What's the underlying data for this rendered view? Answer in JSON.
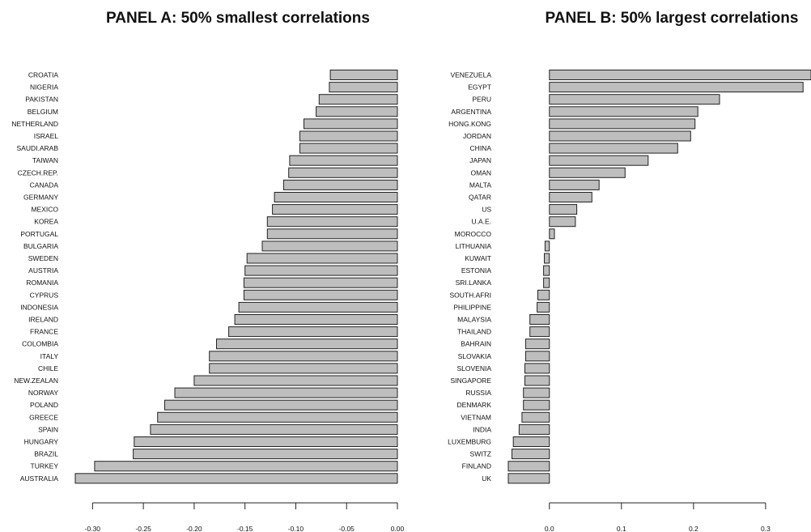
{
  "colors": {
    "bar_fill": "#bebebe",
    "bar_stroke": "#222222",
    "text": "#111111",
    "background": "#ffffff"
  },
  "chart_data": [
    {
      "type": "bar",
      "orientation": "horizontal",
      "title": "PANEL A: 50% smallest correlations",
      "categories": [
        "CROATIA",
        "NIGERIA",
        "PAKISTAN",
        "BELGIUM",
        "NETHERLAND",
        "ISRAEL",
        "SAUDI.ARAB",
        "TAIWAN",
        "CZECH.REP.",
        "CANADA",
        "GERMANY",
        "MEXICO",
        "KOREA",
        "PORTUGAL",
        "BULGARIA",
        "SWEDEN",
        "AUSTRIA",
        "ROMANIA",
        "CYPRUS",
        "INDONESIA",
        "IRELAND",
        "FRANCE",
        "COLOMBIA",
        "ITALY",
        "CHILE",
        "NEW.ZEALAN",
        "NORWAY",
        "POLAND",
        "GREECE",
        "SPAIN",
        "HUNGARY",
        "BRAZIL",
        "TURKEY",
        "AUSTRALIA"
      ],
      "values": [
        -0.066,
        -0.067,
        -0.077,
        -0.08,
        -0.092,
        -0.096,
        -0.096,
        -0.106,
        -0.107,
        -0.112,
        -0.121,
        -0.123,
        -0.128,
        -0.128,
        -0.133,
        -0.148,
        -0.15,
        -0.151,
        -0.151,
        -0.156,
        -0.16,
        -0.166,
        -0.178,
        -0.185,
        -0.185,
        -0.2,
        -0.219,
        -0.229,
        -0.236,
        -0.243,
        -0.259,
        -0.26,
        -0.298,
        -0.317
      ],
      "xlim": [
        -0.317,
        0
      ],
      "xticks": [
        -0.3,
        -0.25,
        -0.2,
        -0.15,
        -0.1,
        -0.05,
        0.0
      ],
      "xtick_labels": [
        "-0.30",
        "-0.25",
        "-0.20",
        "-0.15",
        "-0.10",
        "-0.05",
        "0.00"
      ],
      "grid": false
    },
    {
      "type": "bar",
      "orientation": "horizontal",
      "title": "PANEL B: 50% largest correlations",
      "categories": [
        "VENEZUELA",
        "EGYPT",
        "PERU",
        "ARGENTINA",
        "HONG.KONG",
        "JORDAN",
        "CHINA",
        "JAPAN",
        "OMAN",
        "MALTA",
        "QATAR",
        "US",
        "U.A.E.",
        "MOROCCO",
        "LITHUANIA",
        "KUWAIT",
        "ESTONIA",
        "SRI.LANKA",
        "SOUTH.AFRI",
        "PHILIPPINE",
        "MALAYSIA",
        "THAILAND",
        "BAHRAIN",
        "SLOVAKIA",
        "SLOVENIA",
        "SINGAPORE",
        "RUSSIA",
        "DENMARK",
        "VIETNAM",
        "INDIA",
        "LUXEMBURG",
        "SWITZ",
        "FINLAND",
        "UK"
      ],
      "values": [
        0.363,
        0.352,
        0.236,
        0.206,
        0.202,
        0.196,
        0.178,
        0.137,
        0.105,
        0.069,
        0.059,
        0.038,
        0.036,
        0.007,
        -0.006,
        -0.007,
        -0.008,
        -0.008,
        -0.016,
        -0.017,
        -0.027,
        -0.027,
        -0.033,
        -0.033,
        -0.034,
        -0.034,
        -0.036,
        -0.036,
        -0.038,
        -0.042,
        -0.05,
        -0.052,
        -0.057,
        -0.057
      ],
      "xlim": [
        -0.057,
        0.363
      ],
      "xticks": [
        0.0,
        0.1,
        0.2,
        0.3
      ],
      "xtick_labels": [
        "0.0",
        "0.1",
        "0.2",
        "0.3"
      ],
      "grid": false
    }
  ]
}
